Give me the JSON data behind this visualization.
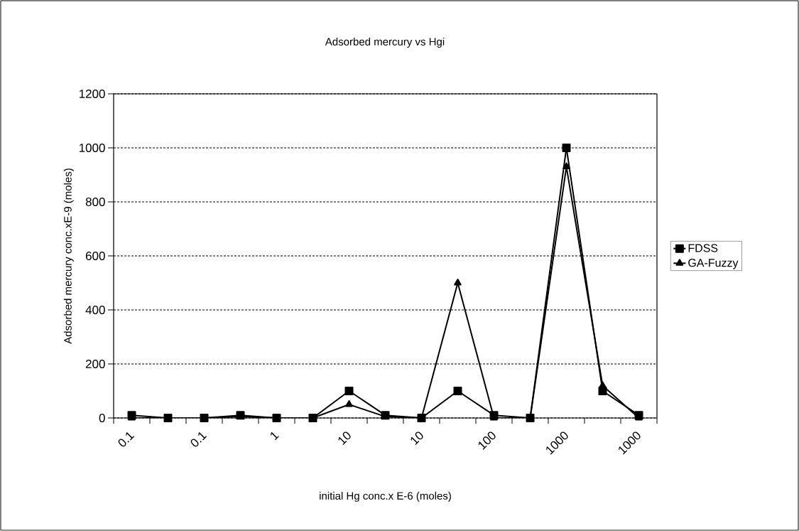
{
  "chart_data": {
    "type": "line",
    "title": "Adsorbed mercury vs Hgi",
    "xlabel": "initial Hg conc.x E-6 (moles)",
    "ylabel": "Adsorbed mercury conc.xE-9 (moles)",
    "categories": [
      "0.1",
      null,
      "0.1",
      null,
      "1",
      null,
      "10",
      null,
      "10",
      null,
      "100",
      null,
      "1000",
      null,
      "1000"
    ],
    "series": [
      {
        "name": "FDSS",
        "color": "#000000",
        "marker": "square",
        "values": [
          10,
          0,
          0,
          10,
          0,
          0,
          100,
          10,
          0,
          100,
          10,
          0,
          1000,
          100,
          10
        ]
      },
      {
        "name": "GA-Fuzzy",
        "color": "#000000",
        "marker": "triangle",
        "values": [
          0,
          0,
          0,
          5,
          0,
          0,
          50,
          5,
          0,
          500,
          0,
          0,
          930,
          120,
          0
        ]
      }
    ],
    "ylim": [
      0,
      1200
    ],
    "yticks": [
      0,
      200,
      400,
      600,
      800,
      1000,
      1200
    ],
    "grid": "y",
    "legend": "right",
    "line_style": "solid"
  }
}
